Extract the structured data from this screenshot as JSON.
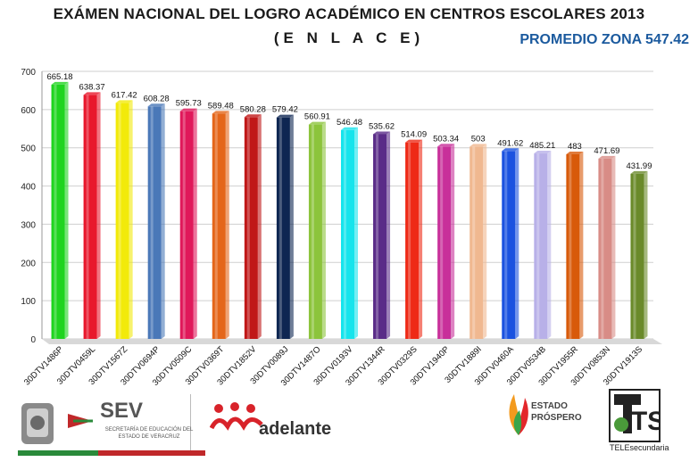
{
  "header": {
    "title": "EXÁMEN NACIONAL DEL LOGRO ACADÉMICO EN CENTROS ESCOLARES 2013",
    "subtitle": "(E N L A C E)",
    "badge": "PROMEDIO ZONA 547.42"
  },
  "chart_data": {
    "type": "bar",
    "title": "EXÁMEN NACIONAL DEL LOGRO ACADÉMICO EN CENTROS ESCOLARES 2013",
    "xlabel": "",
    "ylabel": "",
    "ylim": [
      0,
      700
    ],
    "yticks": [
      0,
      100,
      200,
      300,
      400,
      500,
      600,
      700
    ],
    "grid": true,
    "categories": [
      "30DTV1486P",
      "30DTV0459L",
      "30DTV1567Z",
      "30DTV0694P",
      "30DTV0509C",
      "30DTV0369T",
      "30DTV1852V",
      "30DTV0089J",
      "30DTV1487O",
      "30DTV0193V",
      "30DTV1344R",
      "30DTV0329S",
      "30DTV1940P",
      "30DTV1889I",
      "30DTV0460A",
      "30DTV0534B",
      "30DTV1955R",
      "30DTV0853N",
      "30DTV1913S"
    ],
    "values": [
      665.18,
      638.37,
      617.42,
      608.28,
      595.73,
      589.48,
      580.28,
      579.42,
      560.91,
      546.48,
      535.62,
      514.09,
      503.34,
      503,
      491.62,
      485.21,
      483,
      471.69,
      431.99
    ],
    "value_labels": [
      "665.18",
      "638.37",
      "617.42",
      "608.28",
      "595.73",
      "589.48",
      "580.28",
      "579.42",
      "560.91",
      "546.48",
      "535.62",
      "514.09",
      "503.34",
      "503",
      "491.62",
      "485.21",
      "483",
      "471.69",
      "431.99"
    ],
    "colors": [
      "#1fd41f",
      "#e8182c",
      "#f2ea0a",
      "#4a78b8",
      "#e0185a",
      "#e4661a",
      "#c01818",
      "#0e2652",
      "#8cc43c",
      "#16e4ec",
      "#5a2c88",
      "#ee2a16",
      "#c8309a",
      "#f0b890",
      "#1a52e0",
      "#b8b0e8",
      "#d85a0a",
      "#d88c86",
      "#6a8a2a"
    ]
  },
  "logos": {
    "sev": "SEV",
    "sev_sub": "SECRETARÍA DE EDUCACIÓN DEL ESTADO DE VERACRUZ",
    "adelante": "adelante",
    "estado_line1": "ESTADO",
    "estado_line2": "PRÓSPERO",
    "tele": "TELEsecundaria",
    "ts": "TS"
  }
}
